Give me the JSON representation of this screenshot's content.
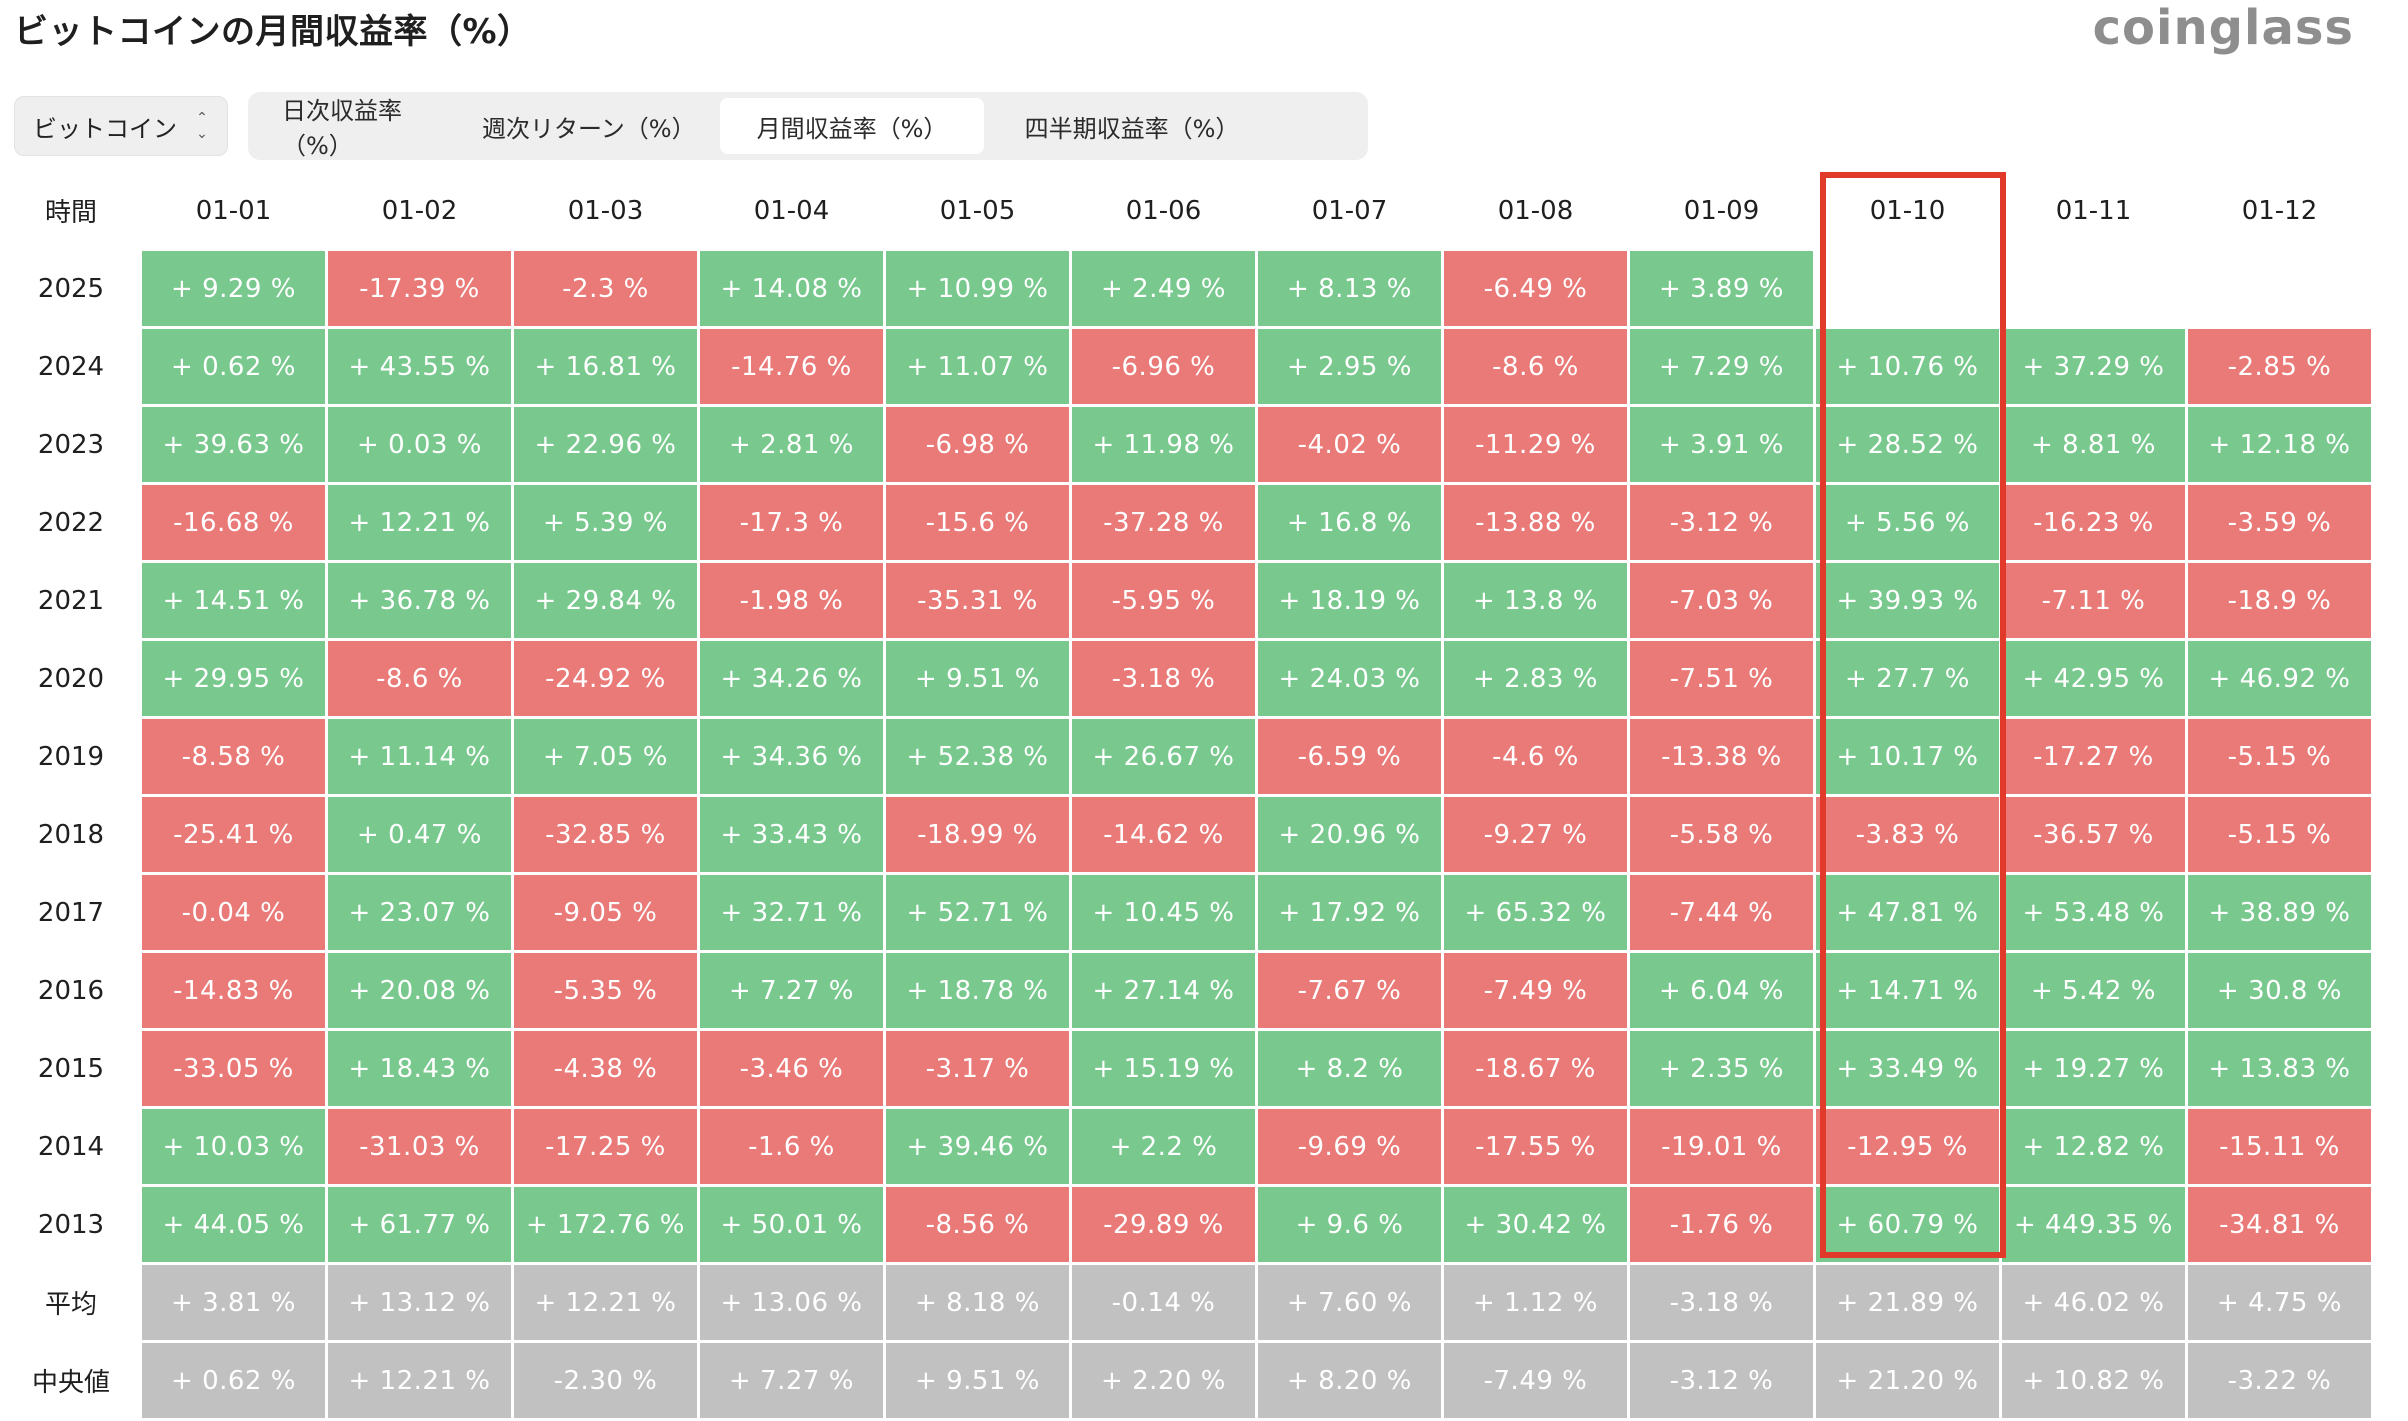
{
  "header": {
    "title": "ビットコインの月間収益率（%）",
    "logo": "coinglass"
  },
  "coin_select": {
    "value": "ビットコイン",
    "icon": "chevron-updown-icon"
  },
  "tabs": [
    {
      "label": "日次収益率（%）",
      "active": false
    },
    {
      "label": "週次リターン（%）",
      "active": false
    },
    {
      "label": "月間収益率（%）",
      "active": true
    },
    {
      "label": "四半期収益率（%）",
      "active": false
    }
  ],
  "colors": {
    "positive": "#79c98f",
    "negative": "#e97a78",
    "stat": "#c1c1c1",
    "highlight": "#e23a2a"
  },
  "table": {
    "corner": "時間",
    "months": [
      "01-01",
      "01-02",
      "01-03",
      "01-04",
      "01-05",
      "01-06",
      "01-07",
      "01-08",
      "01-09",
      "01-10",
      "01-11",
      "01-12"
    ],
    "highlighted_month": "01-10",
    "rows": [
      {
        "label": "2025",
        "kind": "year",
        "values": [
          "+ 9.29 %",
          "-17.39 %",
          "-2.3 %",
          "+ 14.08 %",
          "+ 10.99 %",
          "+ 2.49 %",
          "+ 8.13 %",
          "-6.49 %",
          "+ 3.89 %",
          "",
          "",
          ""
        ]
      },
      {
        "label": "2024",
        "kind": "year",
        "values": [
          "+ 0.62 %",
          "+ 43.55 %",
          "+ 16.81 %",
          "-14.76 %",
          "+ 11.07 %",
          "-6.96 %",
          "+ 2.95 %",
          "-8.6 %",
          "+ 7.29 %",
          "+ 10.76 %",
          "+ 37.29 %",
          "-2.85 %"
        ]
      },
      {
        "label": "2023",
        "kind": "year",
        "values": [
          "+ 39.63 %",
          "+ 0.03 %",
          "+ 22.96 %",
          "+ 2.81 %",
          "-6.98 %",
          "+ 11.98 %",
          "-4.02 %",
          "-11.29 %",
          "+ 3.91 %",
          "+ 28.52 %",
          "+ 8.81 %",
          "+ 12.18 %"
        ]
      },
      {
        "label": "2022",
        "kind": "year",
        "values": [
          "-16.68 %",
          "+ 12.21 %",
          "+ 5.39 %",
          "-17.3 %",
          "-15.6 %",
          "-37.28 %",
          "+ 16.8 %",
          "-13.88 %",
          "-3.12 %",
          "+ 5.56 %",
          "-16.23 %",
          "-3.59 %"
        ]
      },
      {
        "label": "2021",
        "kind": "year",
        "values": [
          "+ 14.51 %",
          "+ 36.78 %",
          "+ 29.84 %",
          "-1.98 %",
          "-35.31 %",
          "-5.95 %",
          "+ 18.19 %",
          "+ 13.8 %",
          "-7.03 %",
          "+ 39.93 %",
          "-7.11 %",
          "-18.9 %"
        ]
      },
      {
        "label": "2020",
        "kind": "year",
        "values": [
          "+ 29.95 %",
          "-8.6 %",
          "-24.92 %",
          "+ 34.26 %",
          "+ 9.51 %",
          "-3.18 %",
          "+ 24.03 %",
          "+ 2.83 %",
          "-7.51 %",
          "+ 27.7 %",
          "+ 42.95 %",
          "+ 46.92 %"
        ]
      },
      {
        "label": "2019",
        "kind": "year",
        "values": [
          "-8.58 %",
          "+ 11.14 %",
          "+ 7.05 %",
          "+ 34.36 %",
          "+ 52.38 %",
          "+ 26.67 %",
          "-6.59 %",
          "-4.6 %",
          "-13.38 %",
          "+ 10.17 %",
          "-17.27 %",
          "-5.15 %"
        ]
      },
      {
        "label": "2018",
        "kind": "year",
        "values": [
          "-25.41 %",
          "+ 0.47 %",
          "-32.85 %",
          "+ 33.43 %",
          "-18.99 %",
          "-14.62 %",
          "+ 20.96 %",
          "-9.27 %",
          "-5.58 %",
          "-3.83 %",
          "-36.57 %",
          "-5.15 %"
        ]
      },
      {
        "label": "2017",
        "kind": "year",
        "values": [
          "-0.04 %",
          "+ 23.07 %",
          "-9.05 %",
          "+ 32.71 %",
          "+ 52.71 %",
          "+ 10.45 %",
          "+ 17.92 %",
          "+ 65.32 %",
          "-7.44 %",
          "+ 47.81 %",
          "+ 53.48 %",
          "+ 38.89 %"
        ]
      },
      {
        "label": "2016",
        "kind": "year",
        "values": [
          "-14.83 %",
          "+ 20.08 %",
          "-5.35 %",
          "+ 7.27 %",
          "+ 18.78 %",
          "+ 27.14 %",
          "-7.67 %",
          "-7.49 %",
          "+ 6.04 %",
          "+ 14.71 %",
          "+ 5.42 %",
          "+ 30.8 %"
        ]
      },
      {
        "label": "2015",
        "kind": "year",
        "values": [
          "-33.05 %",
          "+ 18.43 %",
          "-4.38 %",
          "-3.46 %",
          "-3.17 %",
          "+ 15.19 %",
          "+ 8.2 %",
          "-18.67 %",
          "+ 2.35 %",
          "+ 33.49 %",
          "+ 19.27 %",
          "+ 13.83 %"
        ]
      },
      {
        "label": "2014",
        "kind": "year",
        "values": [
          "+ 10.03 %",
          "-31.03 %",
          "-17.25 %",
          "-1.6 %",
          "+ 39.46 %",
          "+ 2.2 %",
          "-9.69 %",
          "-17.55 %",
          "-19.01 %",
          "-12.95 %",
          "+ 12.82 %",
          "-15.11 %"
        ]
      },
      {
        "label": "2013",
        "kind": "year",
        "values": [
          "+ 44.05 %",
          "+ 61.77 %",
          "+ 172.76 %",
          "+ 50.01 %",
          "-8.56 %",
          "-29.89 %",
          "+ 9.6 %",
          "+ 30.42 %",
          "-1.76 %",
          "+ 60.79 %",
          "+ 449.35 %",
          "-34.81 %"
        ]
      },
      {
        "label": "平均",
        "kind": "stat",
        "values": [
          "+ 3.81 %",
          "+ 13.12 %",
          "+ 12.21 %",
          "+ 13.06 %",
          "+ 8.18 %",
          "-0.14 %",
          "+ 7.60 %",
          "+ 1.12 %",
          "-3.18 %",
          "+ 21.89 %",
          "+ 46.02 %",
          "+ 4.75 %"
        ]
      },
      {
        "label": "中央値",
        "kind": "stat",
        "values": [
          "+ 0.62 %",
          "+ 12.21 %",
          "-2.30 %",
          "+ 7.27 %",
          "+ 9.51 %",
          "+ 2.20 %",
          "+ 8.20 %",
          "-7.49 %",
          "-3.12 %",
          "+ 21.20 %",
          "+ 10.82 %",
          "-3.22 %"
        ]
      }
    ]
  }
}
